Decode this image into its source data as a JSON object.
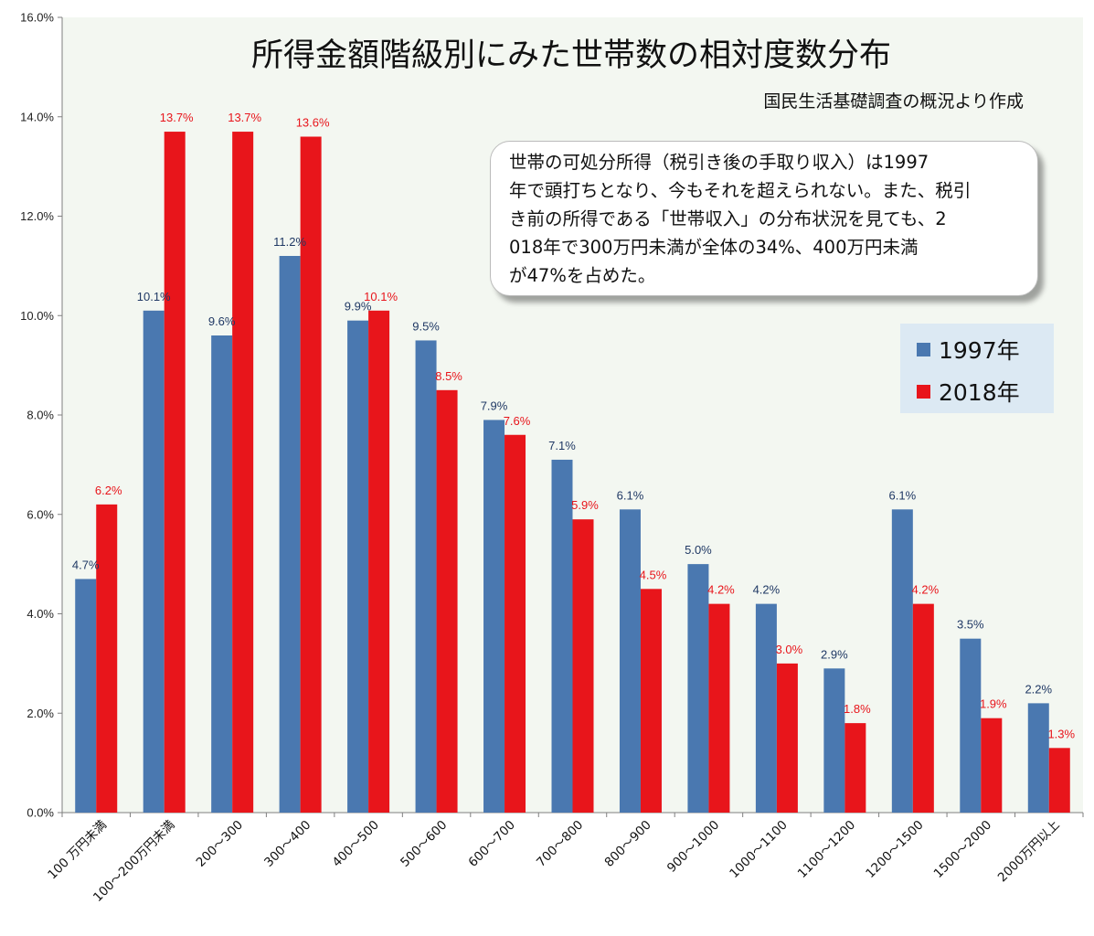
{
  "chart_data": {
    "type": "bar",
    "title": "所得金額階級別にみた世帯数の相対度数分布",
    "subtitle": "国民生活基礎調査の概況より作成",
    "categories": [
      "100 万円未満",
      "100～200万円未満",
      "200～300",
      "300～400",
      "400～500",
      "500～600",
      "600～700",
      "700～800",
      "800～900",
      "900～1000",
      "1000～1100",
      "1100～1200",
      "1200～1500",
      "1500～2000",
      "2000万円以上"
    ],
    "series": [
      {
        "name": "1997年",
        "color": "#4a78b0",
        "values": [
          4.7,
          10.1,
          9.6,
          11.2,
          9.9,
          9.5,
          7.9,
          7.1,
          6.1,
          5.0,
          4.2,
          2.9,
          6.1,
          3.5,
          2.2
        ],
        "labels": [
          "4.7%",
          "10.1%",
          "9.6%",
          "11.2%",
          "9.9%",
          "9.5%",
          "7.9%",
          "7.1%",
          "6.1%",
          "5.0%",
          "4.2%",
          "2.9%",
          "6.1%",
          "3.5%",
          "2.2%"
        ]
      },
      {
        "name": "2018年",
        "color": "#e8151b",
        "values": [
          6.2,
          13.7,
          13.7,
          13.6,
          10.1,
          8.5,
          7.6,
          5.9,
          4.5,
          4.2,
          3.0,
          1.8,
          4.2,
          1.9,
          1.3
        ],
        "labels": [
          "6.2%",
          "13.7%",
          "13.7%",
          "13.6%",
          "10.1%",
          "8.5%",
          "7.6%",
          "5.9%",
          "4.5%",
          "4.2%",
          "3.0%",
          "1.8%",
          "4.2%",
          "1.9%",
          "1.3%"
        ]
      }
    ],
    "ylim": [
      0,
      16
    ],
    "yticks": [
      "0.0%",
      "2.0%",
      "4.0%",
      "6.0%",
      "8.0%",
      "10.0%",
      "12.0%",
      "14.0%",
      "16.0%"
    ],
    "grid": false,
    "legend": "right",
    "plot_background": "#f3f7f1",
    "annotation_lines": [
      "世帯の可処分所得（税引き後の手取り収入）は1997",
      "年で頭打ちとなり、今もそれを超えられない。また、税引",
      "き前の所得である「世帯収入」の分布状況を見ても、2",
      "018年で300万円未満が全体の34%、400万円未満",
      "が47%を占めた。"
    ]
  }
}
